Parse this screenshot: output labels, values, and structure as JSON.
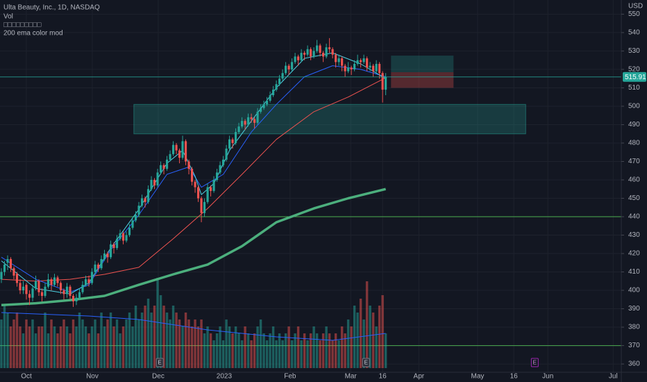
{
  "chart_data": {
    "type": "candlestick",
    "title": "Ulta Beauty, Inc., 1D, NASDAQ",
    "volume_label": "Vol",
    "indicator_label": "□□□□□□□□□",
    "currency": "USD",
    "up_color": "#26a69a",
    "down_color": "#ef5350",
    "ylim": [
      355.5,
      557.7
    ],
    "yticks": [
      360,
      370,
      380,
      390,
      400,
      410,
      420,
      430,
      440,
      450,
      460,
      470,
      480,
      490,
      500,
      510,
      520,
      530,
      540,
      550
    ],
    "xlim": [
      -0.44,
      198.4
    ],
    "xticks": [
      {
        "value": 8,
        "label": "Oct"
      },
      {
        "value": 29.1,
        "label": "Nov"
      },
      {
        "value": 50.2,
        "label": "Dec"
      },
      {
        "value": 71.3,
        "label": "2023"
      },
      {
        "value": 92.4,
        "label": "Feb"
      },
      {
        "value": 111.8,
        "label": "Mar"
      },
      {
        "value": 122,
        "label": "16"
      },
      {
        "value": 133.6,
        "label": "Apr"
      },
      {
        "value": 152.4,
        "label": "May"
      },
      {
        "value": 164,
        "label": "16"
      },
      {
        "value": 174.9,
        "label": "Jun"
      },
      {
        "value": 195.8,
        "label": "Jul"
      }
    ],
    "grid": true,
    "last_price": {
      "value": 515.91,
      "label": "515.91"
    },
    "ohlc": [
      [
        406,
        412,
        404,
        410
      ],
      [
        410,
        416,
        408,
        414
      ],
      [
        415,
        419,
        411,
        417
      ],
      [
        417,
        418,
        410,
        412
      ],
      [
        412,
        413,
        406,
        408
      ],
      [
        409,
        410,
        402,
        404
      ],
      [
        404,
        406,
        398,
        400
      ],
      [
        400,
        405,
        398,
        402
      ],
      [
        403,
        404,
        395,
        398
      ],
      [
        398,
        400,
        392,
        396
      ],
      [
        396,
        403,
        394,
        401
      ],
      [
        401,
        408,
        400,
        405
      ],
      [
        405,
        406,
        397,
        399
      ],
      [
        399,
        401,
        394,
        397
      ],
      [
        397,
        404,
        396,
        402
      ],
      [
        402,
        409,
        401,
        406
      ],
      [
        406,
        407,
        400,
        403
      ],
      [
        403,
        409,
        402,
        407
      ],
      [
        407,
        408,
        402,
        404
      ],
      [
        404,
        405,
        398,
        400
      ],
      [
        400,
        401,
        395,
        398
      ],
      [
        398,
        404,
        396,
        402
      ],
      [
        402,
        403,
        395,
        397
      ],
      [
        397,
        398,
        391,
        394
      ],
      [
        394,
        398,
        392,
        396
      ],
      [
        396,
        401,
        395,
        399
      ],
      [
        399,
        405,
        398,
        403
      ],
      [
        403,
        408,
        402,
        406
      ],
      [
        406,
        408,
        402,
        404
      ],
      [
        404,
        412,
        403,
        410
      ],
      [
        410,
        416,
        409,
        414
      ],
      [
        414,
        415,
        410,
        412
      ],
      [
        412,
        419,
        411,
        417
      ],
      [
        417,
        422,
        416,
        420
      ],
      [
        420,
        421,
        415,
        418
      ],
      [
        418,
        427,
        417,
        425
      ],
      [
        425,
        426,
        420,
        423
      ],
      [
        423,
        430,
        422,
        428
      ],
      [
        428,
        433,
        427,
        431
      ],
      [
        431,
        432,
        425,
        427
      ],
      [
        427,
        432,
        426,
        430
      ],
      [
        430,
        436,
        429,
        434
      ],
      [
        434,
        440,
        433,
        438
      ],
      [
        438,
        443,
        437,
        441
      ],
      [
        441,
        448,
        440,
        446
      ],
      [
        446,
        452,
        445,
        450
      ],
      [
        450,
        451,
        445,
        448
      ],
      [
        448,
        457,
        447,
        455
      ],
      [
        455,
        462,
        454,
        460
      ],
      [
        460,
        461,
        455,
        457
      ],
      [
        457,
        466,
        456,
        464
      ],
      [
        464,
        470,
        463,
        468
      ],
      [
        468,
        469,
        463,
        466
      ],
      [
        466,
        473,
        465,
        471
      ],
      [
        471,
        476,
        470,
        474
      ],
      [
        474,
        481,
        473,
        479
      ],
      [
        479,
        480,
        474,
        476
      ],
      [
        476,
        477,
        469,
        472
      ],
      [
        472,
        484,
        471,
        481
      ],
      [
        481,
        482,
        468,
        470
      ],
      [
        470,
        471,
        463,
        466
      ],
      [
        466,
        467,
        457,
        459
      ],
      [
        459,
        460,
        453,
        456
      ],
      [
        456,
        457,
        448,
        450
      ],
      [
        450,
        451,
        437,
        442
      ],
      [
        442,
        450,
        440,
        448
      ],
      [
        448,
        458,
        447,
        456
      ],
      [
        456,
        457,
        451,
        454
      ],
      [
        454,
        462,
        453,
        460
      ],
      [
        460,
        466,
        459,
        464
      ],
      [
        464,
        470,
        463,
        468
      ],
      [
        468,
        473,
        467,
        471
      ],
      [
        471,
        479,
        470,
        477
      ],
      [
        477,
        484,
        476,
        482
      ],
      [
        482,
        483,
        477,
        480
      ],
      [
        480,
        488,
        479,
        486
      ],
      [
        486,
        491,
        485,
        489
      ],
      [
        489,
        494,
        488,
        492
      ],
      [
        492,
        493,
        487,
        490
      ],
      [
        490,
        496,
        489,
        494
      ],
      [
        494,
        496,
        491,
        493
      ],
      [
        493,
        494,
        488,
        491
      ],
      [
        491,
        499,
        490,
        497
      ],
      [
        497,
        501,
        496,
        499
      ],
      [
        499,
        503,
        498,
        501
      ],
      [
        501,
        505,
        500,
        503
      ],
      [
        503,
        508,
        502,
        506
      ],
      [
        506,
        511,
        505,
        509
      ],
      [
        509,
        514,
        508,
        512
      ],
      [
        512,
        517,
        511,
        515
      ],
      [
        515,
        520,
        514,
        518
      ],
      [
        518,
        524,
        517,
        522
      ],
      [
        522,
        523,
        517,
        520
      ],
      [
        520,
        526,
        519,
        524
      ],
      [
        524,
        529,
        523,
        527
      ],
      [
        527,
        528,
        522,
        525
      ],
      [
        525,
        531,
        524,
        529
      ],
      [
        529,
        530,
        525,
        528
      ],
      [
        528,
        533,
        527,
        531
      ],
      [
        531,
        532,
        525,
        527
      ],
      [
        527,
        532,
        526,
        530
      ],
      [
        530,
        536,
        529,
        533
      ],
      [
        533,
        534,
        527,
        529
      ],
      [
        529,
        530,
        524,
        527
      ],
      [
        527,
        534,
        526,
        532
      ],
      [
        532,
        537,
        529,
        531
      ],
      [
        531,
        532,
        526,
        528
      ],
      [
        528,
        529,
        521,
        524
      ],
      [
        524,
        528,
        522,
        526
      ],
      [
        526,
        527,
        519,
        522
      ],
      [
        522,
        523,
        516,
        519
      ],
      [
        519,
        524,
        518,
        521
      ],
      [
        521,
        522,
        517,
        520
      ],
      [
        520,
        525,
        519,
        523
      ],
      [
        523,
        528,
        522,
        525
      ],
      [
        525,
        526,
        521,
        524
      ],
      [
        524,
        528,
        523,
        526
      ],
      [
        526,
        527,
        519,
        521
      ],
      [
        521,
        524,
        519,
        522
      ],
      [
        522,
        523,
        516,
        519
      ],
      [
        519,
        525,
        518,
        523
      ],
      [
        523,
        524,
        515,
        518
      ],
      [
        518,
        519,
        502,
        509
      ],
      [
        509,
        518,
        506,
        515.91
      ]
    ],
    "volume_ylim": [
      0,
      2
    ],
    "volume": [
      0.7,
      0.9,
      0.8,
      0.6,
      0.7,
      0.8,
      0.6,
      0.5,
      0.7,
      0.6,
      0.7,
      0.5,
      0.6,
      0.6,
      0.8,
      0.5,
      0.7,
      0.6,
      0.5,
      0.6,
      0.7,
      0.6,
      0.5,
      0.7,
      0.6,
      0.8,
      0.7,
      0.6,
      0.5,
      0.6,
      0.7,
      0.5,
      0.8,
      0.6,
      0.7,
      0.8,
      0.6,
      0.7,
      0.5,
      0.6,
      0.7,
      0.8,
      0.6,
      0.9,
      0.7,
      0.8,
      0.9,
      1.0,
      0.8,
      0.9,
      1.3,
      1.05,
      0.9,
      0.8,
      0.7,
      0.9,
      0.8,
      0.7,
      0.6,
      0.8,
      0.7,
      0.6,
      0.7,
      0.6,
      0.7,
      0.5,
      0.6,
      0.5,
      0.4,
      0.5,
      0.6,
      0.4,
      0.7,
      0.6,
      0.5,
      0.6,
      0.5,
      0.4,
      0.6,
      0.5,
      0.4,
      0.5,
      0.6,
      0.7,
      0.5,
      0.4,
      0.5,
      0.6,
      0.4,
      0.5,
      0.4,
      0.5,
      0.6,
      0.4,
      0.5,
      0.6,
      0.4,
      0.5,
      0.4,
      0.5,
      0.6,
      0.5,
      0.4,
      0.5,
      0.6,
      0.5,
      0.4,
      0.5,
      0.4,
      0.6,
      0.5,
      0.7,
      0.6,
      0.9,
      0.8,
      1.0,
      0.7,
      1.25,
      0.9,
      0.8,
      0.6,
      0.9,
      1.05,
      0.5
    ],
    "volume_ma": {
      "color": "#2962ff",
      "x": [
        0,
        28,
        44,
        66,
        88,
        106,
        123
      ],
      "values": [
        0.8,
        0.75,
        0.7,
        0.55,
        0.45,
        0.4,
        0.5
      ]
    },
    "emas": [
      {
        "name": "200 ema color mod",
        "color": "#4caf7d",
        "width": 3.5,
        "x": [
          0,
          11,
          22,
          33,
          44,
          55,
          66,
          77,
          88,
          100,
          111,
          123
        ],
        "values": [
          392,
          393,
          394.7,
          397,
          403,
          408.7,
          414,
          424,
          437,
          444.5,
          450,
          455
        ]
      },
      {
        "color": "#ef5350",
        "width": 1,
        "x": [
          0,
          11,
          22,
          33,
          44,
          55,
          66,
          77,
          88,
          100,
          111,
          123
        ],
        "values": [
          406,
          405,
          406,
          408.7,
          412.5,
          428,
          444.5,
          463,
          482,
          497,
          505,
          515.5
        ]
      },
      {
        "color": "#2962ff",
        "width": 1,
        "x": [
          0,
          11,
          22,
          28,
          35,
          44,
          53,
          60,
          64,
          71,
          80,
          88,
          97,
          106,
          115,
          123
        ],
        "values": [
          418,
          406,
          399,
          403,
          422,
          441,
          463,
          467,
          456,
          463,
          486,
          501,
          516,
          522,
          520,
          516
        ]
      },
      {
        "color": "#4dd0e1",
        "width": 1,
        "x": [
          0,
          11,
          22,
          28,
          35,
          44,
          53,
          58,
          62,
          64,
          68,
          73,
          80,
          88,
          97,
          106,
          115,
          123
        ],
        "values": [
          416,
          401,
          398,
          404,
          423,
          444,
          469,
          476,
          462,
          452,
          458,
          476,
          492,
          510,
          526,
          529,
          523,
          515
        ]
      }
    ],
    "hlines": [
      {
        "value": 440,
        "color": "#4caf50"
      },
      {
        "value": 370,
        "color": "#4caf50"
      }
    ],
    "zones": [
      {
        "from": 42.4,
        "to": 167.8,
        "low": 485,
        "high": 501,
        "color": "#26a69a"
      }
    ],
    "position": {
      "from": 124.7,
      "to": 144.7,
      "target": 527.5,
      "entry": 518.5,
      "stop": 510
    },
    "events": [
      {
        "x": 50.7,
        "label": "E",
        "color": "#787b86"
      },
      {
        "x": 116.7,
        "label": "E",
        "color": "#787b86"
      },
      {
        "x": 170.7,
        "label": "E",
        "color": "#9c27b0"
      }
    ]
  }
}
